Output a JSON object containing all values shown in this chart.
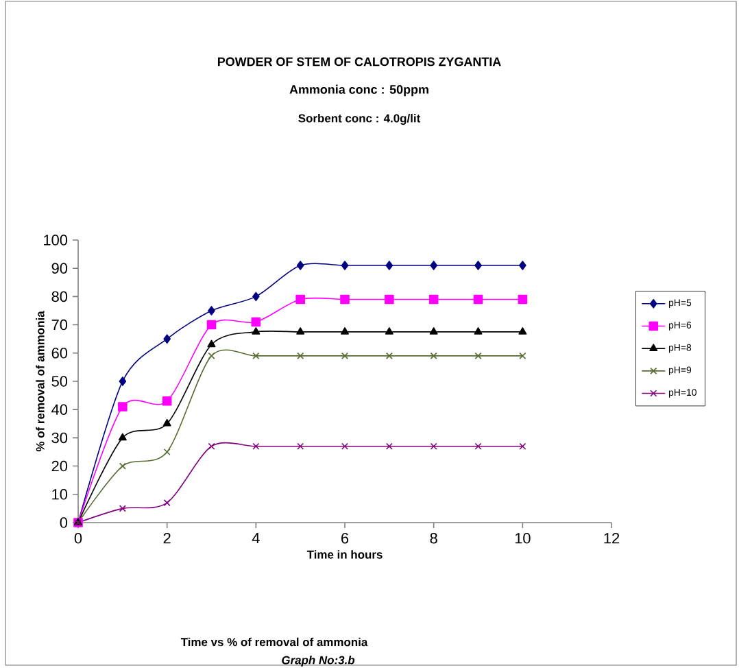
{
  "chart_data": {
    "type": "line",
    "title": "POWDER OF STEM OF CALOTROPIS ZYGANTIA",
    "subtitle": "Ammonia  conc : 50ppm",
    "xlabel": "Time in hours",
    "ylabel": "% of removal of ammonia",
    "annotations": [
      "Sorbent conc : 4.0g/lit",
      "Time  vs % of removal of ammonia",
      "Graph No:3.b"
    ],
    "x": [
      0,
      1,
      2,
      3,
      4,
      5,
      6,
      7,
      8,
      9,
      10
    ],
    "series": [
      {
        "name": "pH=5",
        "color": "#000080",
        "marker": "diamond",
        "values": [
          0,
          50,
          65,
          75,
          80,
          91,
          91,
          91,
          91,
          91,
          91
        ]
      },
      {
        "name": "pH=6",
        "color": "#ff00ff",
        "marker": "square",
        "values": [
          0,
          41,
          43,
          70,
          71,
          79,
          79,
          79,
          79,
          79,
          79
        ]
      },
      {
        "name": "pH=8",
        "color": "#000000",
        "marker": "triangle",
        "values": [
          0,
          30,
          35,
          63,
          67.5,
          67.5,
          67.5,
          67.5,
          67.5,
          67.5,
          67.5
        ]
      },
      {
        "name": "pH=9",
        "color": "#556b2f",
        "marker": "cross",
        "values": [
          0,
          20,
          25,
          59,
          59,
          59,
          59,
          59,
          59,
          59,
          59
        ]
      },
      {
        "name": "pH=10",
        "color": "#800080",
        "marker": "cross",
        "values": [
          0,
          5,
          7,
          27,
          27,
          27,
          27,
          27,
          27,
          27,
          27
        ]
      }
    ],
    "xlim": [
      0,
      12
    ],
    "xticks": [
      0,
      2,
      4,
      6,
      8,
      10,
      12
    ],
    "ylim": [
      0,
      100
    ],
    "yticks": [
      0,
      10,
      20,
      30,
      40,
      50,
      60,
      70,
      80,
      90,
      100
    ],
    "grid": false,
    "legend": "right",
    "line_style": "solid"
  }
}
